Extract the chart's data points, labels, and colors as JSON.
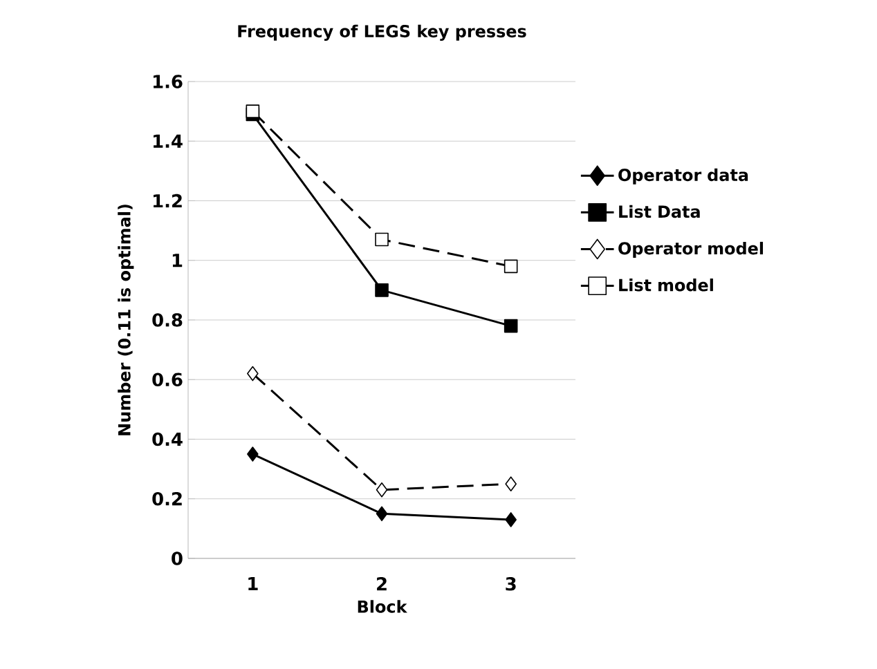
{
  "chart_data": {
    "type": "line",
    "title": "Frequency of LEGS key presses",
    "xlabel": "Block",
    "ylabel": "Number (0.11 is optimal)",
    "categories": [
      "1",
      "2",
      "3"
    ],
    "series": [
      {
        "name": "Operator data",
        "color": "#000000",
        "values": [
          0.35,
          0.15,
          0.13
        ],
        "marker": "diamond",
        "line_style": "solid"
      },
      {
        "name": "List Data",
        "color": "#000000",
        "values": [
          1.49,
          0.9,
          0.78
        ],
        "marker": "square",
        "line_style": "solid"
      },
      {
        "name": "Operator model",
        "color": "#000000",
        "values": [
          0.62,
          0.23,
          0.25
        ],
        "marker": "diamond",
        "line_style": "dashed"
      },
      {
        "name": "List model",
        "color": "#000000",
        "values": [
          1.5,
          1.07,
          0.98
        ],
        "marker": "square",
        "line_style": "dashed"
      }
    ],
    "ylim": [
      0,
      1.6
    ],
    "yticks": [
      0,
      0.2,
      0.4,
      0.6,
      0.8,
      1,
      1.2,
      1.4,
      1.6
    ],
    "grid": "y",
    "legend": "right"
  }
}
